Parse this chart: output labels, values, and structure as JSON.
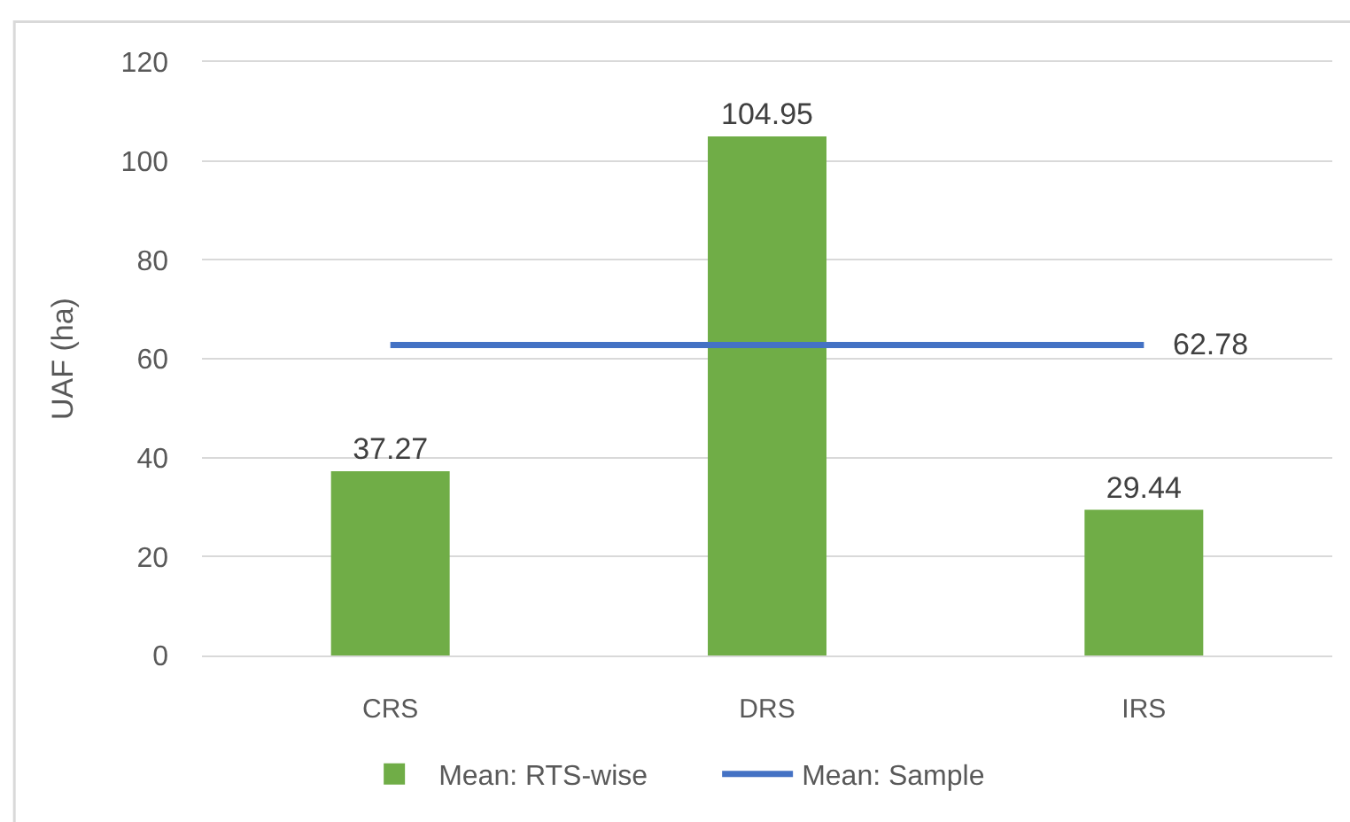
{
  "chart_data": {
    "type": "bar",
    "ylabel": "UAF (ha)",
    "categories": [
      "CRS",
      "DRS",
      "IRS"
    ],
    "series": [
      {
        "name": "Mean: RTS-wise",
        "color": "#70ad47",
        "values": [
          37.27,
          104.95,
          29.44
        ],
        "value_labels": [
          "37.27",
          "104.95",
          "29.44"
        ]
      },
      {
        "name": "Mean: Sample",
        "type": "line",
        "color": "#4472c4",
        "values": [
          62.78,
          62.78,
          62.78
        ],
        "value_labels": [
          null,
          null,
          "62.78"
        ]
      }
    ],
    "ylim": [
      0,
      120
    ],
    "yticks": [
      0,
      20,
      40,
      60,
      80,
      100,
      120
    ],
    "grid": "y",
    "legend": "bottom"
  }
}
